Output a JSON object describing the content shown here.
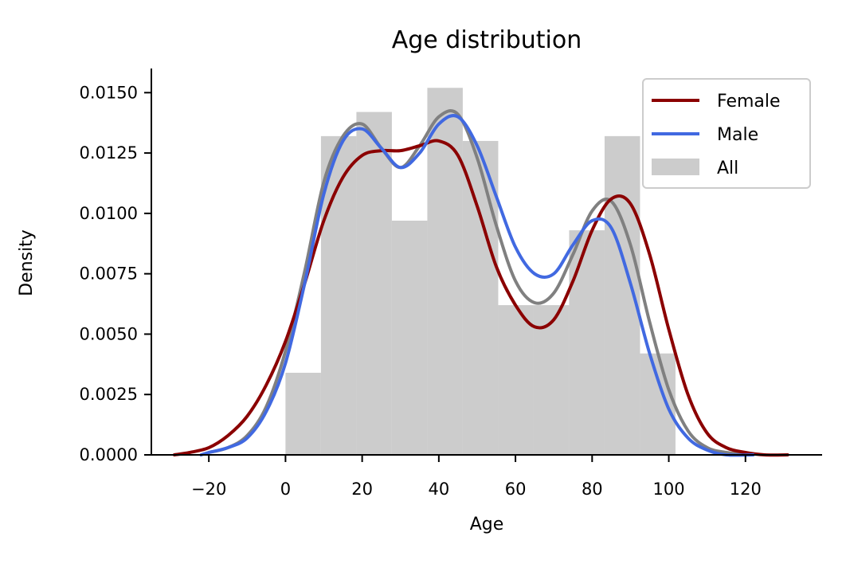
{
  "chart_data": {
    "type": "bar",
    "title": "Age distribution",
    "xlabel": "Age",
    "ylabel": "Density",
    "xlim": [
      -35,
      140
    ],
    "ylim": [
      0,
      0.016
    ],
    "xticks": [
      -20,
      0,
      20,
      40,
      60,
      80,
      100,
      120
    ],
    "xtick_labels": [
      "−20",
      "0",
      "20",
      "40",
      "60",
      "80",
      "100",
      "120"
    ],
    "yticks": [
      0,
      0.0025,
      0.005,
      0.0075,
      0.01,
      0.0125,
      0.015
    ],
    "ytick_labels": [
      "0.0000",
      "0.0025",
      "0.0050",
      "0.0075",
      "0.0100",
      "0.0125",
      "0.0150"
    ],
    "grid": false,
    "legend": {
      "position": "top-right"
    },
    "histogram": {
      "name": "All",
      "color": "#cccccc",
      "bin_edges": [
        0,
        9.25,
        18.5,
        27.75,
        37,
        46.25,
        55.5,
        64.75,
        74,
        83.25,
        92.5,
        101.75
      ],
      "values": [
        0.0034,
        0.0132,
        0.0142,
        0.0097,
        0.0152,
        0.013,
        0.0062,
        0.0062,
        0.0093,
        0.0132,
        0.0042
      ]
    },
    "series": [
      {
        "name": "All KDE",
        "color": "#808080",
        "x": [
          -20,
          -15,
          -10,
          -5,
          0,
          5,
          10,
          15,
          20,
          25,
          30,
          35,
          40,
          45,
          50,
          55,
          60,
          65,
          70,
          75,
          80,
          85,
          90,
          95,
          100,
          105,
          110,
          115,
          120
        ],
        "values": [
          0.0001,
          0.0003,
          0.0008,
          0.002,
          0.0043,
          0.0076,
          0.0113,
          0.0132,
          0.0137,
          0.0127,
          0.0119,
          0.0128,
          0.014,
          0.0141,
          0.0123,
          0.0095,
          0.0072,
          0.0063,
          0.0067,
          0.0083,
          0.0101,
          0.0105,
          0.0087,
          0.0055,
          0.0027,
          0.001,
          0.0003,
          0.0001,
          0.0
        ]
      },
      {
        "name": "Female",
        "color": "#8b0000",
        "x": [
          -29,
          -25,
          -20,
          -15,
          -10,
          -5,
          0,
          5,
          10,
          15,
          20,
          25,
          30,
          35,
          40,
          45,
          50,
          55,
          60,
          65,
          70,
          75,
          80,
          85,
          90,
          95,
          100,
          105,
          110,
          115,
          120,
          125,
          131
        ],
        "values": [
          0.0,
          0.0001,
          0.0003,
          0.0008,
          0.0016,
          0.0029,
          0.0047,
          0.0071,
          0.0097,
          0.0115,
          0.0124,
          0.0126,
          0.0126,
          0.0128,
          0.013,
          0.0124,
          0.0103,
          0.0078,
          0.0062,
          0.0053,
          0.0056,
          0.0072,
          0.0093,
          0.0106,
          0.0104,
          0.0083,
          0.0052,
          0.0025,
          0.0009,
          0.0003,
          0.0001,
          0.0,
          0.0
        ]
      },
      {
        "name": "Male",
        "color": "#4169e1",
        "x": [
          -22,
          -20,
          -15,
          -10,
          -5,
          0,
          5,
          10,
          15,
          20,
          25,
          30,
          35,
          40,
          45,
          50,
          55,
          60,
          65,
          70,
          75,
          80,
          85,
          90,
          95,
          100,
          105,
          110,
          115,
          122
        ],
        "values": [
          0.0,
          0.0001,
          0.0003,
          0.0007,
          0.0018,
          0.0038,
          0.0071,
          0.0108,
          0.013,
          0.0135,
          0.0127,
          0.0119,
          0.0125,
          0.0137,
          0.014,
          0.0128,
          0.0107,
          0.0086,
          0.0075,
          0.0075,
          0.0087,
          0.0097,
          0.0094,
          0.0071,
          0.0042,
          0.0019,
          0.0007,
          0.0002,
          0.0,
          0.0
        ]
      }
    ],
    "legend_entries": [
      {
        "label": "Female",
        "kind": "line",
        "color": "#8b0000"
      },
      {
        "label": "Male",
        "kind": "line",
        "color": "#4169e1"
      },
      {
        "label": "All",
        "kind": "patch",
        "color": "#cccccc"
      }
    ]
  }
}
